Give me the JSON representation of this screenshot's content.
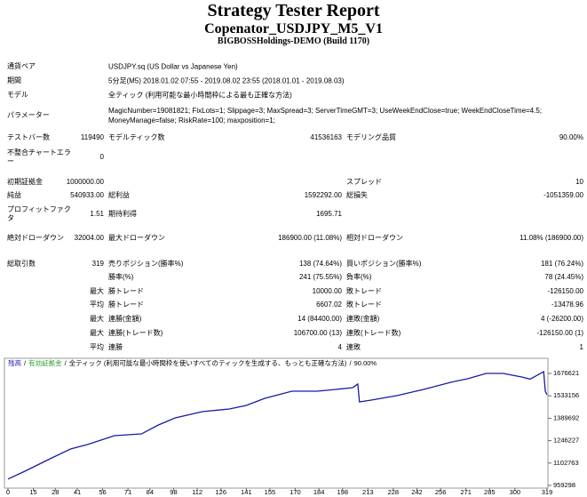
{
  "header": {
    "title": "Strategy Tester Report",
    "subtitle": "Copenator_USDJPY_M5_V1",
    "build": "BIGBOSSHoldings-DEMO (Build 1170)"
  },
  "info": [
    {
      "label": "通貨ペア",
      "value": "USDJPY.sq (US Dollar vs Japanese Yen)"
    },
    {
      "label": "期間",
      "value": "5分足(M5) 2018.01.02 07:55 - 2019.08.02 23:55 (2018.01.01 - 2019.08.03)"
    },
    {
      "label": "モデル",
      "value": "全ティック (利用可能な最小時間枠による最も正確な方法)"
    },
    {
      "label": "パラメーター",
      "value": "MagicNumber=19081821; FixLots=1; Slippage=3; MaxSpread=3; ServerTimeGMT=3; UseWeekEndClose=true; WeekEndCloseTime=4.5; MoneyManage=false; RiskRate=100; maxposition=1;"
    }
  ],
  "stats": [
    {
      "c1": "テストバー数",
      "v1": "119490",
      "c2": "モデルティック数",
      "v2": "41536163",
      "c3": "モデリング品質",
      "v3": "90.00%"
    },
    {
      "c1": "不整合チャートエラー",
      "v1": "0"
    },
    {
      "c1": "初期証拠金",
      "v1": "1000000.00",
      "c3": "スプレッド",
      "v3": "10"
    },
    {
      "c1": "純益",
      "v1": "540933.00",
      "c2": "総利益",
      "v2": "1592292.00",
      "c3": "総損失",
      "v3": "-1051359.00"
    },
    {
      "c1": "プロフィットファクタ",
      "v1": "1.51",
      "c2": "期待利得",
      "v2": "1695.71"
    },
    {
      "c1": "絶対ドローダウン",
      "v1": "32004.00",
      "c2": "最大ドローダウン",
      "v2": "186900.00 (11.08%)",
      "c3": "相対ドローダウン",
      "v3": "11.08% (186900.00)"
    },
    {
      "c1": "総取引数",
      "v1": "319",
      "c2": "売りポジション(勝率%)",
      "v2": "138 (74.64%)",
      "c3": "買いポジション(勝率%)",
      "v3": "181 (76.24%)"
    },
    {
      "c2": "勝率(%)",
      "v2": "241 (75.55%)",
      "c3": "負率(%)",
      "v3": "78 (24.45%)"
    },
    {
      "v1": "最大",
      "c2": "勝トレード",
      "v2": "10000.00",
      "c3": "敗トレード",
      "v3": "-126150.00"
    },
    {
      "v1": "平均",
      "c2": "勝トレード",
      "v2": "6607.02",
      "c3": "敗トレード",
      "v3": "-13478.96"
    },
    {
      "v1": "最大",
      "c2": "連勝(金額)",
      "v2": "14 (84400.00)",
      "c3": "連敗(金額)",
      "v3": "4 (-26200.00)"
    },
    {
      "v1": "最大",
      "c2": "連勝(トレード数)",
      "v2": "106700.00 (13)",
      "c3": "連敗(トレード数)",
      "v3": "-126150.00 (1)"
    },
    {
      "v1": "平均",
      "c2": "連勝",
      "v2": "4",
      "c3": "連敗",
      "v3": "1"
    }
  ],
  "chart_data": {
    "type": "line",
    "legend": [
      {
        "text": "残高",
        "color": "#1a1aa6"
      },
      {
        "text": "有効証拠金",
        "color": "#2e9e2e"
      },
      {
        "text": "全ティック (利用可能な最小時間枠を使いすべてのティックを生成する、もっとも正確な方法)"
      },
      {
        "text": "90.00%"
      }
    ],
    "legend_separator": "/",
    "x": [
      0,
      10,
      26,
      37,
      47,
      63,
      79,
      89,
      99,
      115,
      131,
      141,
      152,
      168,
      183,
      194,
      204,
      207,
      208,
      215,
      230,
      246,
      262,
      272,
      283,
      293,
      304,
      309,
      314,
      317,
      318,
      319
    ],
    "series": [
      {
        "color": "#1a1aa6",
        "values": [
          1000000,
          1050300,
          1135700,
          1192600,
          1221100,
          1278100,
          1289400,
          1346400,
          1392000,
          1431800,
          1449000,
          1471700,
          1517300,
          1562900,
          1562900,
          1574300,
          1585700,
          1608500,
          1494600,
          1505800,
          1534300,
          1574300,
          1619800,
          1642600,
          1676800,
          1676800,
          1654000,
          1640000,
          1670000,
          1688000,
          1560000,
          1540933
        ]
      }
    ],
    "xlim": [
      0,
      319
    ],
    "xticks": [
      0,
      15,
      28,
      41,
      56,
      71,
      84,
      98,
      112,
      126,
      141,
      155,
      170,
      184,
      198,
      213,
      228,
      242,
      256,
      271,
      285,
      300,
      319
    ],
    "ylim": [
      942200,
      1773400
    ],
    "yticks": [
      1676621,
      1533156,
      1389692,
      1246227,
      1102763,
      959298
    ]
  }
}
